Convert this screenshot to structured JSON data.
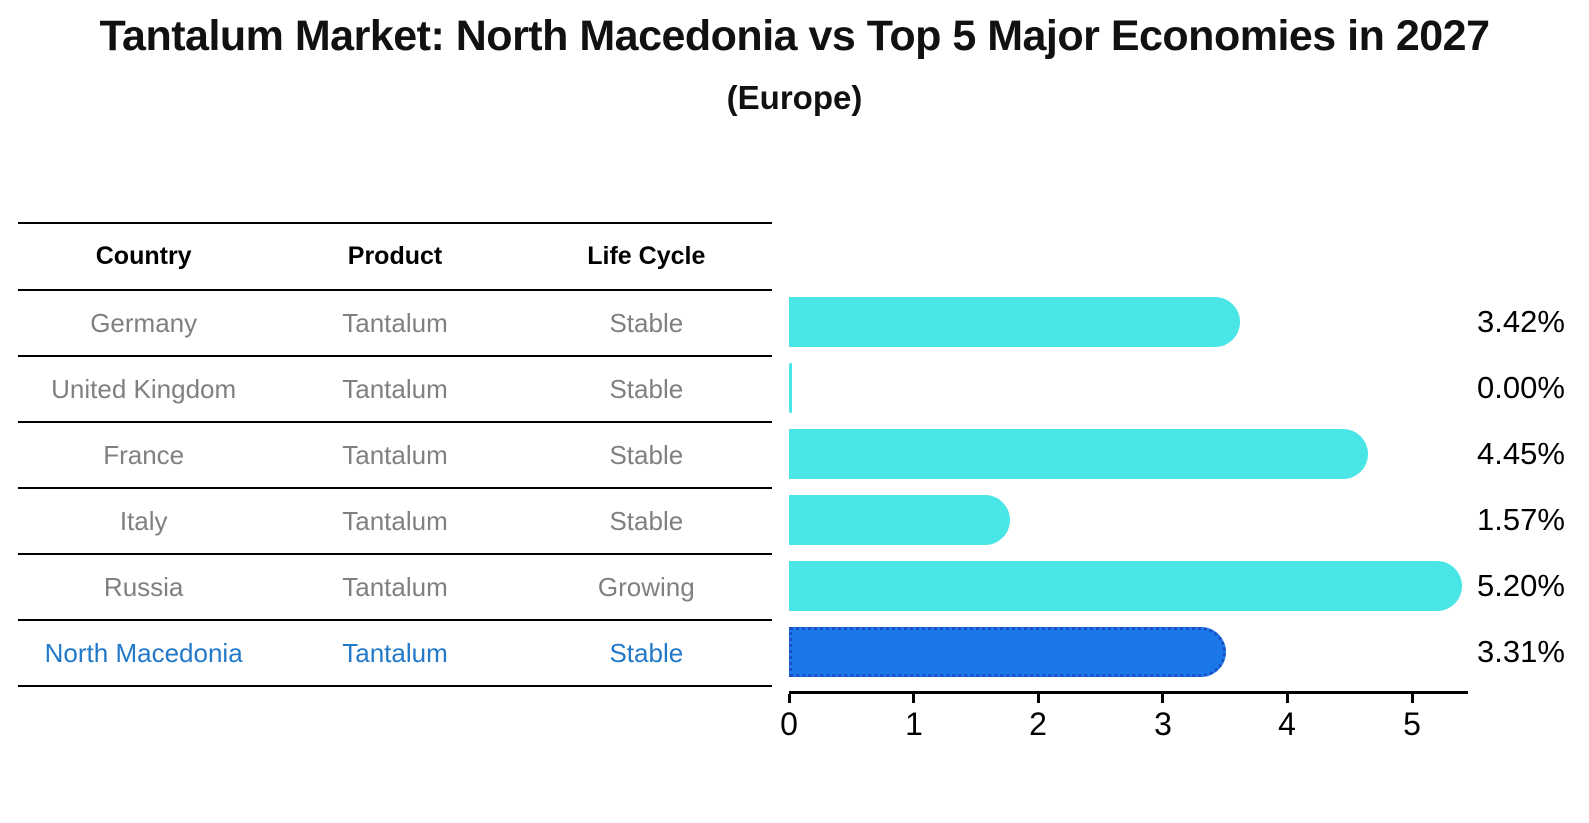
{
  "header": {
    "title": "Tantalum Market: North Macedonia vs Top 5 Major Economies in 2027",
    "subtitle": "(Europe)"
  },
  "table": {
    "headers": [
      "Country",
      "Product",
      "Life Cycle"
    ],
    "rows": [
      {
        "country": "Germany",
        "product": "Tantalum",
        "life_cycle": "Stable"
      },
      {
        "country": "United Kingdom",
        "product": "Tantalum",
        "life_cycle": "Stable"
      },
      {
        "country": "France",
        "product": "Tantalum",
        "life_cycle": "Stable"
      },
      {
        "country": "Italy",
        "product": "Tantalum",
        "life_cycle": "Stable"
      },
      {
        "country": "Russia",
        "product": "Tantalum",
        "life_cycle": "Growing"
      },
      {
        "country": "North Macedonia",
        "product": "Tantalum",
        "life_cycle": "Stable"
      }
    ],
    "highlight_row_index": 5,
    "text_color": "#808080",
    "highlight_text_color": "#2379C9"
  },
  "chart_data": {
    "type": "bar",
    "orientation": "horizontal",
    "title": "Tantalum Market: North Macedonia vs Top 5 Major Economies in 2027",
    "subtitle": "(Europe)",
    "categories": [
      "Germany",
      "United Kingdom",
      "France",
      "Italy",
      "Russia",
      "North Macedonia"
    ],
    "values": [
      3.42,
      0.0,
      4.45,
      1.57,
      5.2,
      3.31
    ],
    "value_labels": [
      "3.42%",
      "0.00%",
      "4.45%",
      "1.57%",
      "5.20%",
      "3.31%"
    ],
    "xlabel": "",
    "ylabel": "",
    "xlim": [
      0,
      5.45
    ],
    "xticks": [
      0,
      1,
      2,
      3,
      4,
      5
    ],
    "grid": false,
    "legend": "none",
    "bar_color": "#4AE5E5",
    "highlight_index": 5,
    "highlight_color": "#1B78EB",
    "highlight_border_color": "#1C4FC4"
  }
}
